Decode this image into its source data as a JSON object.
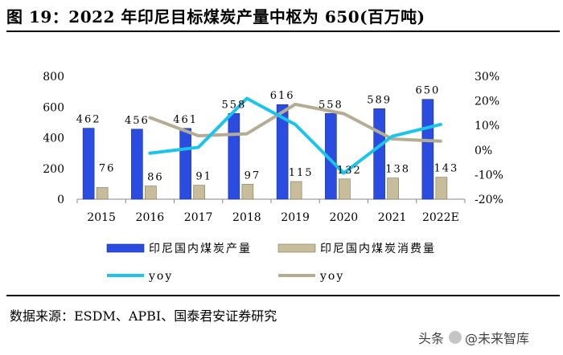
{
  "title": "图 19：2022 年印尼目标煤炭产量中枢为 650(百万吨)",
  "source": "数据来源：ESDM、APBI、国泰君安证券研究",
  "watermark": {
    "prefix": "头条",
    "handle": "@未来智库"
  },
  "colors": {
    "production": "#2b4ce0",
    "consumption": "#c8bd9a",
    "yoy_production": "#1cc4ea",
    "yoy_consumption": "#b4ad94",
    "axis": "#888888"
  },
  "chart_data": {
    "type": "bar",
    "categories": [
      "2015",
      "2016",
      "2017",
      "2018",
      "2019",
      "2020",
      "2021",
      "2022E"
    ],
    "left_axis": {
      "min": 0,
      "max": 800,
      "ticks": [
        0,
        200,
        400,
        600,
        800
      ],
      "tick_labels": [
        "0",
        "200",
        "400",
        "600",
        "800"
      ]
    },
    "right_axis": {
      "min": -20,
      "max": 30,
      "ticks": [
        -20,
        -10,
        0,
        10,
        20,
        30
      ],
      "tick_labels": [
        "-20%",
        "-10%",
        "0%",
        "10%",
        "20%",
        "30%"
      ]
    },
    "series": [
      {
        "name": "印尼国内煤炭产量",
        "type": "bar",
        "axis": "left",
        "values": [
          462,
          456,
          461,
          558,
          616,
          558,
          589,
          650
        ],
        "labels": [
          "462",
          "456",
          "461",
          "558",
          "616",
          "558",
          "589",
          "650"
        ]
      },
      {
        "name": "印尼国内煤炭消费量",
        "type": "bar",
        "axis": "left",
        "values": [
          76,
          86,
          91,
          97,
          115,
          132,
          138,
          143
        ],
        "labels": [
          "76",
          "86",
          "91",
          "97",
          "115",
          "132",
          "138",
          "143"
        ]
      },
      {
        "name": "yoy",
        "type": "line",
        "axis": "right",
        "of": "印尼国内煤炭产量",
        "values": [
          null,
          -1.3,
          1.1,
          21.0,
          10.4,
          -9.4,
          5.6,
          10.4
        ]
      },
      {
        "name": "yoy",
        "type": "line",
        "axis": "right",
        "of": "印尼国内煤炭消费量",
        "values": [
          null,
          13.2,
          5.8,
          6.6,
          18.6,
          14.8,
          4.5,
          3.6
        ]
      }
    ],
    "legend": [
      {
        "label": "印尼国内煤炭产量",
        "kind": "bar",
        "series": 0
      },
      {
        "label": "印尼国内煤炭消费量",
        "kind": "bar",
        "series": 1
      },
      {
        "label": "yoy",
        "kind": "line",
        "series": 2
      },
      {
        "label": "yoy",
        "kind": "line",
        "series": 3
      }
    ],
    "legend_position": "bottom",
    "grid": false
  }
}
